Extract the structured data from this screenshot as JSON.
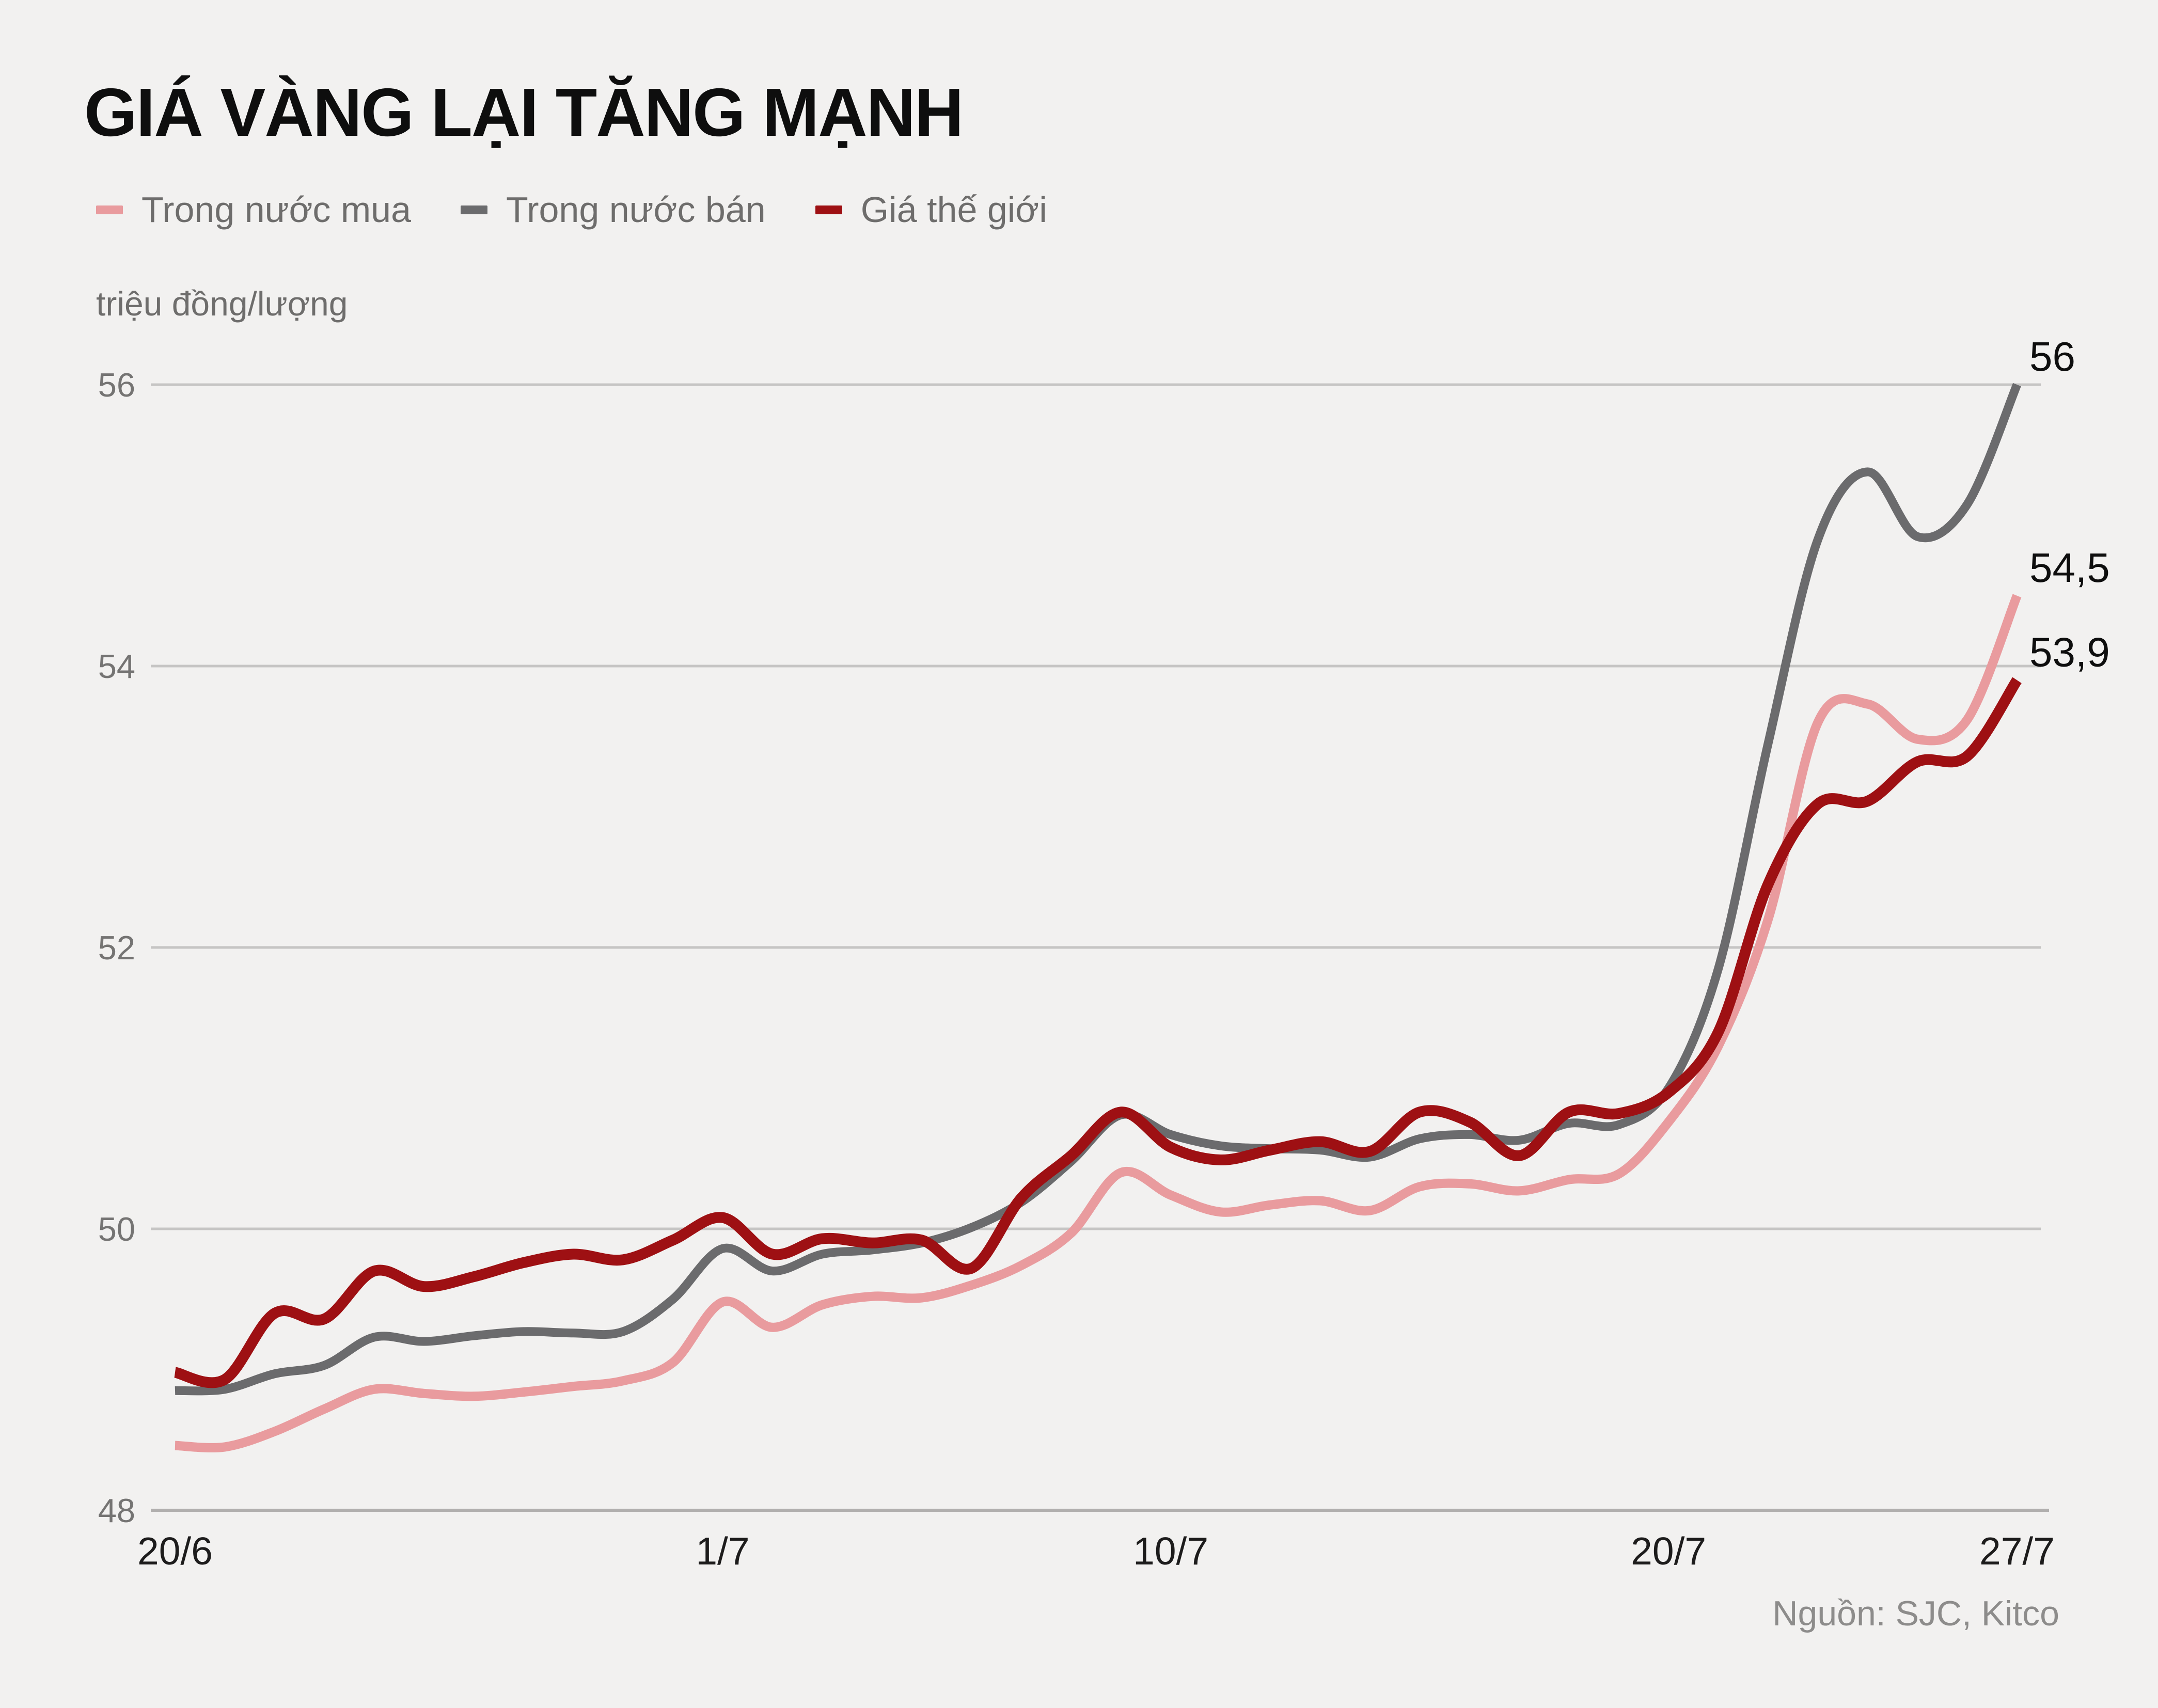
{
  "title": "GIÁ VÀNG LẠI TĂNG MẠNH",
  "unit_label": "triệu đồng/lượng",
  "source": "Nguồn: SJC, Kitco",
  "colors": {
    "background": "#f2f1f0",
    "title_text": "#0e0e0e",
    "legend_text": "#6e6d6c",
    "unit_text": "#6e6d6c",
    "grid": "#c6c5c4",
    "axis_bottom": "#b1afae",
    "y_tick_text": "#757473",
    "x_tick_text": "#1d1c1c",
    "end_label_text": "#0e0e0e",
    "source_text": "#8d8c8b",
    "buy": "#e99b9e",
    "sell": "#6b6b6d",
    "world": "#9e1013"
  },
  "legend": {
    "items": [
      {
        "label": "Trong nước mua",
        "color_key": "buy"
      },
      {
        "label": "Trong nước bán",
        "color_key": "sell"
      },
      {
        "label": "Giá thế giới",
        "color_key": "world"
      }
    ]
  },
  "chart_data": {
    "type": "line",
    "title": "GIÁ VÀNG LẠI TĂNG MẠNH",
    "ylabel": "triệu đồng/lượng",
    "ylim": [
      48,
      56
    ],
    "yticks": [
      48,
      50,
      52,
      54,
      56
    ],
    "grid": "horizontal-only",
    "legend_position": "top-left",
    "x_unit": "days from 20/6 (20 June) to 27/7 (27 July), daily samples",
    "xticks": [
      {
        "day": 0,
        "label": "20/6"
      },
      {
        "day": 11,
        "label": "1/7"
      },
      {
        "day": 20,
        "label": "10/7"
      },
      {
        "day": 30,
        "label": "20/7"
      },
      {
        "day": 37,
        "label": "27/7"
      }
    ],
    "series": [
      {
        "name": "Trong nước mua",
        "color_key": "buy",
        "stroke_width": 18,
        "end_label": "54,5",
        "end_value": 54.5,
        "values": [
          48.46,
          48.45,
          48.56,
          48.72,
          48.86,
          48.83,
          48.81,
          48.84,
          48.88,
          48.92,
          49.05,
          49.48,
          49.3,
          49.46,
          49.52,
          49.51,
          49.6,
          49.74,
          49.97,
          50.4,
          50.24,
          50.12,
          50.17,
          50.2,
          50.13,
          50.3,
          50.32,
          50.27,
          50.35,
          50.39,
          50.76,
          51.3,
          52.2,
          53.6,
          53.73,
          53.48,
          53.62,
          54.5
        ]
      },
      {
        "name": "Trong nước bán",
        "color_key": "sell",
        "stroke_width": 17,
        "end_label": "56",
        "end_value": 56,
        "values": [
          48.85,
          48.86,
          48.97,
          49.03,
          49.23,
          49.2,
          49.24,
          49.27,
          49.26,
          49.27,
          49.5,
          49.86,
          49.7,
          49.82,
          49.85,
          49.9,
          50.01,
          50.19,
          50.48,
          50.81,
          50.67,
          50.59,
          50.57,
          50.56,
          50.51,
          50.64,
          50.67,
          50.63,
          50.75,
          50.74,
          51.0,
          51.85,
          53.45,
          54.9,
          55.38,
          54.92,
          55.15,
          56.0
        ]
      },
      {
        "name": "Giá thế giới",
        "color_key": "world",
        "stroke_width": 21,
        "end_label": "53,9",
        "end_value": 53.9,
        "values": [
          48.98,
          48.93,
          49.4,
          49.36,
          49.7,
          49.59,
          49.66,
          49.76,
          49.82,
          49.78,
          49.92,
          50.08,
          49.82,
          49.93,
          49.9,
          49.92,
          49.72,
          50.22,
          50.52,
          50.83,
          50.58,
          50.49,
          50.56,
          50.62,
          50.55,
          50.83,
          50.76,
          50.52,
          50.83,
          50.82,
          50.97,
          51.4,
          52.45,
          53.02,
          53.04,
          53.32,
          53.36,
          53.9
        ]
      }
    ]
  }
}
